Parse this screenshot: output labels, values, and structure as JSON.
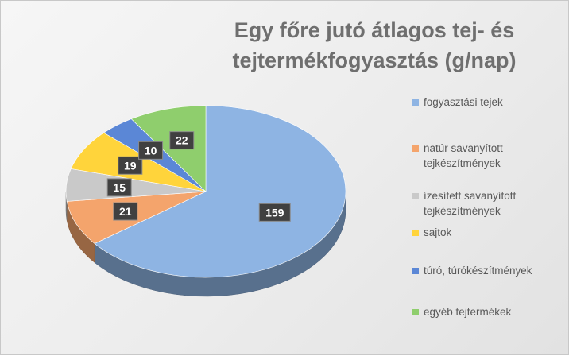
{
  "chart_data": {
    "type": "pie",
    "title": [
      "Egy főre jutó átlagos tej- és",
      "tejtermékfogyasztás (g/nap)"
    ],
    "categories": [
      "fogyasztási tejek",
      "natúr savanyított tejkészítmények",
      "ízesített savanyított tejkészítmények",
      "sajtok",
      "túró, túrókészítmények",
      "egyéb tejtermékek"
    ],
    "values": [
      159,
      21,
      15,
      19,
      10,
      22
    ],
    "colors": [
      "#8eb4e3",
      "#f4a46c",
      "#c9c9c9",
      "#ffd43b",
      "#5b87d6",
      "#8fce6d"
    ],
    "legend_position": "right",
    "style": "3d"
  }
}
